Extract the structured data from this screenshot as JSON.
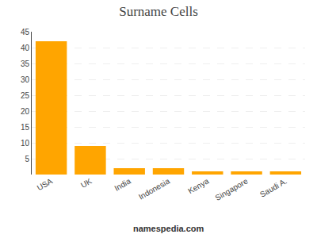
{
  "chart_data": {
    "type": "bar",
    "title": "Surname Cells",
    "categories": [
      "USA",
      "UK",
      "India",
      "Indonesia",
      "Kenya",
      "Singapore",
      "Saudi A."
    ],
    "values": [
      42,
      9,
      2,
      2,
      1,
      1,
      1
    ],
    "color": "#FFA500",
    "ylim": [
      0,
      45
    ],
    "yticks": [
      5,
      10,
      15,
      20,
      25,
      30,
      35,
      40,
      45
    ],
    "grid": true,
    "annotations": [
      "namespedia.com"
    ]
  }
}
